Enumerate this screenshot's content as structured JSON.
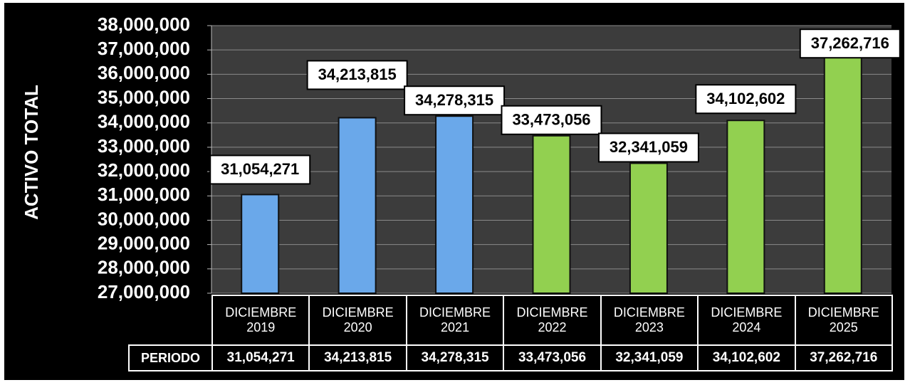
{
  "chart_data": {
    "type": "bar",
    "y_label": "ACTIVO TOTAL",
    "table_header": "PERIODO",
    "categories": [
      "DICIEMBRE 2019",
      "DICIEMBRE 2020",
      "DICIEMBRE 2021",
      "DICIEMBRE 2022",
      "DICIEMBRE 2023",
      "DICIEMBRE 2024",
      "DICIEMBRE 2025"
    ],
    "values": [
      31054271,
      34213815,
      34278315,
      33473056,
      32341059,
      34102602,
      37262716
    ],
    "value_labels": [
      "31,054,271",
      "34,213,815",
      "34,278,315",
      "33,473,056",
      "32,341,059",
      "34,102,602",
      "37,262,716"
    ],
    "colors": [
      "#6aa8ea",
      "#6aa8ea",
      "#6aa8ea",
      "#92d050",
      "#92d050",
      "#92d050",
      "#92d050"
    ],
    "ylim": [
      27000000,
      38000000
    ],
    "yticks": [
      {
        "value": 27000000,
        "label": "27,000,000"
      },
      {
        "value": 28000000,
        "label": "28,000,000"
      },
      {
        "value": 29000000,
        "label": "29,000,000"
      },
      {
        "value": 30000000,
        "label": "30,000,000"
      },
      {
        "value": 31000000,
        "label": "31,000,000"
      },
      {
        "value": 32000000,
        "label": "32,000,000"
      },
      {
        "value": 33000000,
        "label": "33,000,000"
      },
      {
        "value": 34000000,
        "label": "34,000,000"
      },
      {
        "value": 35000000,
        "label": "35,000,000"
      },
      {
        "value": 36000000,
        "label": "36,000,000"
      },
      {
        "value": 37000000,
        "label": "37,000,000"
      },
      {
        "value": 38000000,
        "label": "38,000,000"
      }
    ],
    "grid": true
  }
}
